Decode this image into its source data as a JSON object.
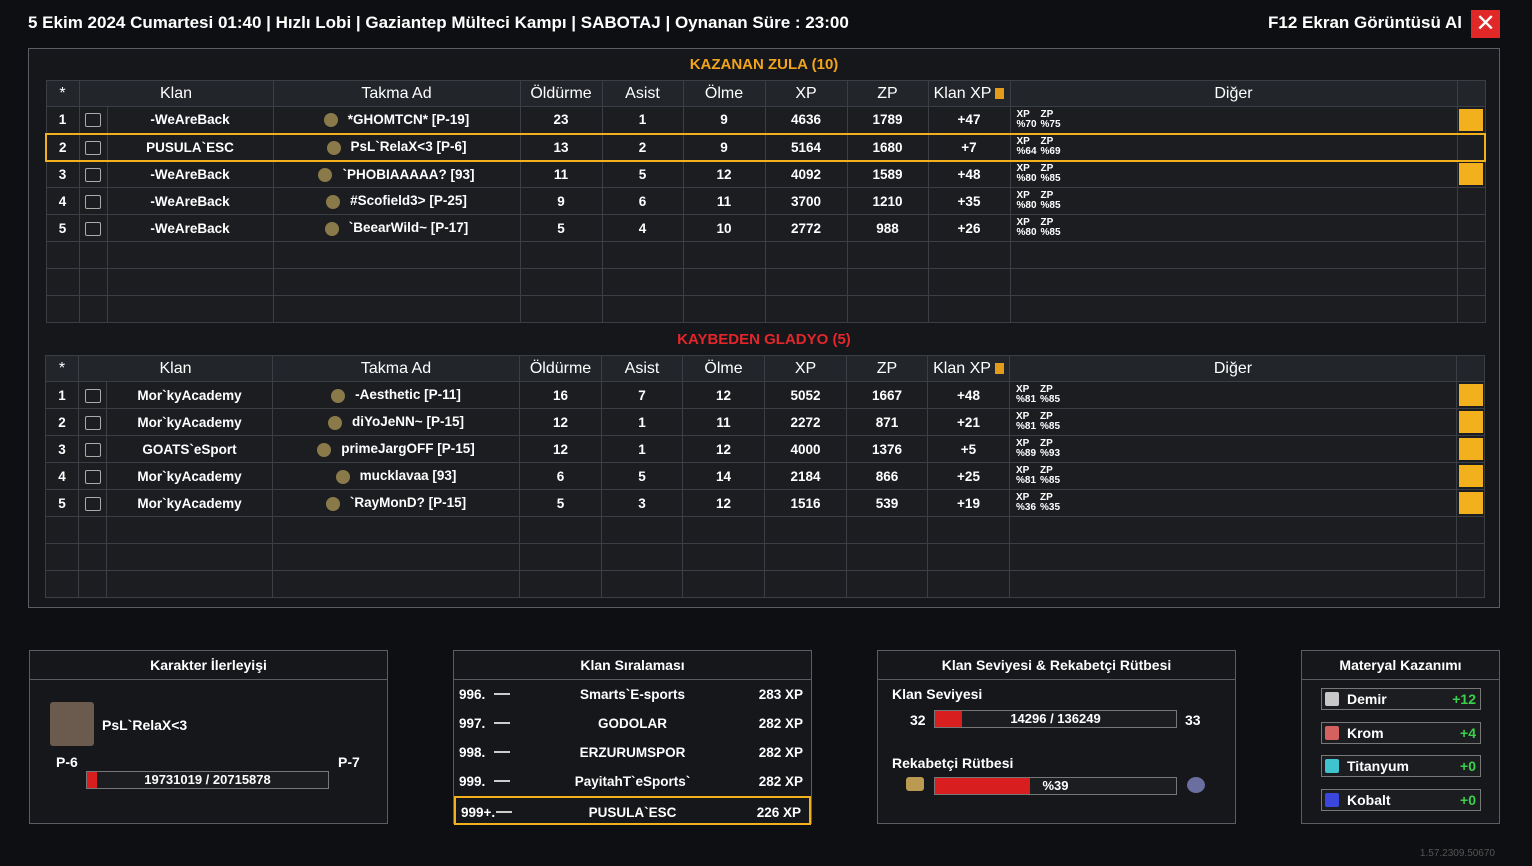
{
  "header": {
    "title": "5 Ekim 2024 Cumartesi 01:40 | Hızlı Lobi | Gaziantep Mülteci Kampı | SABOTAJ | Oynanan Süre : 23:00",
    "screenshot": "F12 Ekran Görüntüsü Al"
  },
  "winners": {
    "title": "KAZANAN ZULA (10)",
    "headers": [
      "*",
      "Klan",
      "Takma Ad",
      "Öldürme",
      "Asist",
      "Ölme",
      "XP",
      "ZP",
      "Klan XP",
      "Diğer"
    ],
    "rows": [
      [
        1,
        "-WeAreBack",
        "*GHOMTCN* [P-19]",
        23,
        1,
        9,
        4636,
        1789,
        "+47"
      ],
      [
        2,
        "PUSULA`ESC",
        "PsL`RelaX<3 [P-6]",
        13,
        2,
        9,
        5164,
        1680,
        "+7"
      ],
      [
        3,
        "-WeAreBack",
        "`PHOBIAAAAA? [93]",
        11,
        5,
        12,
        4092,
        1589,
        "+48"
      ],
      [
        4,
        "-WeAreBack",
        "#Scofield3> [P-25]",
        9,
        6,
        11,
        3700,
        1210,
        "+35"
      ],
      [
        5,
        "-WeAreBack",
        "`BeearWild~ [P-17]",
        5,
        4,
        10,
        2772,
        988,
        "+26"
      ]
    ],
    "bonus_labels": [
      "XP",
      "ZP"
    ],
    "bonuses": [
      [
        "%70",
        "%75"
      ],
      [
        "%64",
        "%69"
      ],
      [
        "%80",
        "%85"
      ],
      [
        "%80",
        "%85"
      ],
      [
        "%80",
        "%85"
      ]
    ]
  },
  "losers": {
    "title": "KAYBEDEN GLADYO (5)",
    "headers": [
      "*",
      "Klan",
      "Takma Ad",
      "Öldürme",
      "Asist",
      "Ölme",
      "XP",
      "ZP",
      "Klan XP",
      "Diğer"
    ],
    "rows": [
      [
        1,
        "Mor`kyAcademy",
        "-Aesthetic [P-11]",
        16,
        7,
        12,
        5052,
        1667,
        "+48"
      ],
      [
        2,
        "Mor`kyAcademy",
        "diYoJeNN~ [P-15]",
        12,
        1,
        11,
        2272,
        871,
        "+21"
      ],
      [
        3,
        "GOATS`eSport",
        "primeJargOFF [P-15]",
        12,
        1,
        12,
        4000,
        1376,
        "+5"
      ],
      [
        4,
        "Mor`kyAcademy",
        "mucklavaa [93]",
        6,
        5,
        14,
        2184,
        866,
        "+25"
      ],
      [
        5,
        "Mor`kyAcademy",
        "`RayMonD? [P-15]",
        5,
        3,
        12,
        1516,
        539,
        "+19"
      ]
    ],
    "bonus_labels": [
      "XP",
      "ZP"
    ],
    "bonuses": [
      [
        "%81",
        "%85"
      ],
      [
        "%81",
        "%85"
      ],
      [
        "%89",
        "%93"
      ],
      [
        "%81",
        "%85"
      ],
      [
        "%36",
        "%35"
      ]
    ]
  },
  "character": {
    "title": "Karakter İlerleyişi",
    "name": "PsL`RelaX<3",
    "level": "P-6",
    "next_level": "P-7",
    "progress": "19731019 / 20715878"
  },
  "clan_ranking": {
    "title": "Klan Sıralaması",
    "rows": [
      [
        "996.",
        "Smarts`E-sports",
        "283 XP"
      ],
      [
        "997.",
        "GODOLAR",
        "282 XP"
      ],
      [
        "998.",
        "ERZURUMSPOR",
        "282 XP"
      ],
      [
        "999.",
        "PayitahT`eSports`",
        "282 XP"
      ],
      [
        "999+.",
        "PUSULA`ESC",
        "226 XP"
      ]
    ]
  },
  "clan_level": {
    "title": "Klan Seviyesi & Rekabetçi Rütbesi",
    "level_label": "Klan Seviyesi",
    "level": 32,
    "next_level": 33,
    "progress": "14296 / 136249",
    "rank_label": "Rekabetçi Rütbesi",
    "rank_progress": "%39"
  },
  "materials": {
    "title": "Materyal Kazanımı",
    "rows": [
      [
        "Demir",
        "+12"
      ],
      [
        "Krom",
        "+4"
      ],
      [
        "Titanyum",
        "+0"
      ],
      [
        "Kobalt",
        "+0"
      ]
    ]
  },
  "version": "1.57.2309.50670"
}
